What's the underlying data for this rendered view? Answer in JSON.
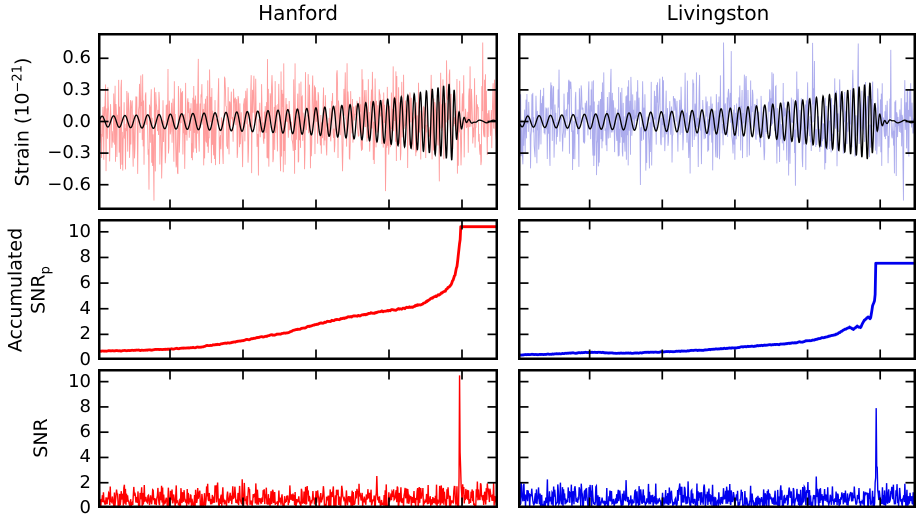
{
  "figure": {
    "titles": [
      {
        "text": "Hanford"
      },
      {
        "text": "Livingston"
      }
    ],
    "ylabels": {
      "strain": {
        "prefix": "Strain (10",
        "exp": "−21",
        "suffix": ")"
      },
      "accumulated": {
        "line1": "Accumulated",
        "line2_main": "SNR",
        "line2_sub": "p"
      },
      "snr": "SNR"
    }
  },
  "chart_data": {
    "type": "line",
    "grid": "off",
    "legend": "none",
    "x_axis_tick_labels_visible": false,
    "columns": [
      "Hanford",
      "Livingston"
    ],
    "row_quantities": [
      "Strain (10^-21)",
      "Accumulated SNR_p",
      "SNR"
    ],
    "panels": [
      {
        "name": "hanford-strain",
        "row": 0,
        "col": 0,
        "kind": "strain",
        "ylim": [
          -0.84,
          0.84
        ],
        "yticks": [
          0.6,
          0.3,
          0.0,
          -0.3,
          -0.6
        ],
        "ytick_labels": [
          "0.6",
          "0.3",
          "0.0",
          "−0.3",
          "−0.6"
        ],
        "noise_color": "#ff9898",
        "template_color": "#000000",
        "noise_peak": 0.75,
        "template_peak": 0.37,
        "template_sign": 1,
        "merger_x": 0.89,
        "seed": 11
      },
      {
        "name": "livingston-strain",
        "row": 0,
        "col": 1,
        "kind": "strain",
        "ylim": [
          -0.84,
          0.84
        ],
        "yticks": [
          0.6,
          0.3,
          0.0,
          -0.3,
          -0.6
        ],
        "ytick_labels": [],
        "noise_color": "#a8a8ec",
        "template_color": "#000000",
        "noise_peak": 0.75,
        "template_peak": 0.37,
        "template_sign": -1,
        "merger_x": 0.89,
        "seed": 77
      },
      {
        "name": "hanford-accumulated-snr",
        "row": 1,
        "col": 0,
        "kind": "acc",
        "ylim": [
          0,
          11
        ],
        "yticks": [
          10,
          8,
          6,
          4,
          2,
          0
        ],
        "ytick_labels": [
          "10",
          "8",
          "6",
          "4",
          "2",
          "0"
        ],
        "color": "#ff0000",
        "keypoints": [
          [
            0,
            0.7
          ],
          [
            0.05,
            0.72
          ],
          [
            0.1,
            0.75
          ],
          [
            0.15,
            0.8
          ],
          [
            0.2,
            0.9
          ],
          [
            0.25,
            1.0
          ],
          [
            0.28,
            1.15
          ],
          [
            0.32,
            1.3
          ],
          [
            0.36,
            1.5
          ],
          [
            0.4,
            1.75
          ],
          [
            0.44,
            1.95
          ],
          [
            0.48,
            2.2
          ],
          [
            0.52,
            2.55
          ],
          [
            0.56,
            2.9
          ],
          [
            0.6,
            3.2
          ],
          [
            0.63,
            3.35
          ],
          [
            0.66,
            3.5
          ],
          [
            0.7,
            3.75
          ],
          [
            0.73,
            3.85
          ],
          [
            0.76,
            4.0
          ],
          [
            0.79,
            4.15
          ],
          [
            0.82,
            4.5
          ],
          [
            0.85,
            5.0
          ],
          [
            0.87,
            5.4
          ],
          [
            0.885,
            5.9
          ],
          [
            0.895,
            6.6
          ],
          [
            0.9,
            7.3
          ],
          [
            0.905,
            8.6
          ],
          [
            0.912,
            10.4
          ],
          [
            1,
            10.4
          ]
        ],
        "flat_from": 0.912,
        "flat_value": 10.4,
        "seed": 3
      },
      {
        "name": "livingston-accumulated-snr",
        "row": 1,
        "col": 1,
        "kind": "acc",
        "ylim": [
          0,
          11
        ],
        "yticks": [
          10,
          8,
          6,
          4,
          2,
          0
        ],
        "ytick_labels": [],
        "color": "#0000ee",
        "keypoints": [
          [
            0,
            0.4
          ],
          [
            0.08,
            0.45
          ],
          [
            0.14,
            0.55
          ],
          [
            0.2,
            0.6
          ],
          [
            0.24,
            0.52
          ],
          [
            0.3,
            0.55
          ],
          [
            0.36,
            0.62
          ],
          [
            0.42,
            0.7
          ],
          [
            0.48,
            0.8
          ],
          [
            0.54,
            0.95
          ],
          [
            0.6,
            1.1
          ],
          [
            0.65,
            1.2
          ],
          [
            0.7,
            1.35
          ],
          [
            0.74,
            1.55
          ],
          [
            0.77,
            1.75
          ],
          [
            0.8,
            2.0
          ],
          [
            0.82,
            2.3
          ],
          [
            0.835,
            2.55
          ],
          [
            0.845,
            2.4
          ],
          [
            0.855,
            2.65
          ],
          [
            0.863,
            2.5
          ],
          [
            0.872,
            3.1
          ],
          [
            0.882,
            3.35
          ],
          [
            0.888,
            3.25
          ],
          [
            0.893,
            4.2
          ],
          [
            0.898,
            4.6
          ],
          [
            0.9,
            5.2
          ],
          [
            0.905,
            7.55
          ],
          [
            1,
            7.55
          ]
        ],
        "flat_from": 0.905,
        "flat_value": 7.55,
        "seed": 4
      },
      {
        "name": "hanford-snr",
        "row": 2,
        "col": 0,
        "kind": "snr",
        "ylim": [
          0,
          11
        ],
        "yticks": [
          10,
          8,
          6,
          4,
          2,
          0
        ],
        "ytick_labels": [
          "10",
          "8",
          "6",
          "4",
          "2",
          "0"
        ],
        "color": "#ff0000",
        "noise_mean": 1.0,
        "spike": {
          "x": 0.906,
          "height": 10.5
        },
        "post_boost": true,
        "seed": 5
      },
      {
        "name": "livingston-snr",
        "row": 2,
        "col": 1,
        "kind": "snr",
        "ylim": [
          0,
          11
        ],
        "yticks": [
          10,
          8,
          6,
          4,
          2,
          0
        ],
        "ytick_labels": [],
        "color": "#0000ee",
        "noise_mean": 1.05,
        "spike": {
          "x": 0.903,
          "height": 7.9
        },
        "post_boost": false,
        "seed": 6
      }
    ]
  }
}
